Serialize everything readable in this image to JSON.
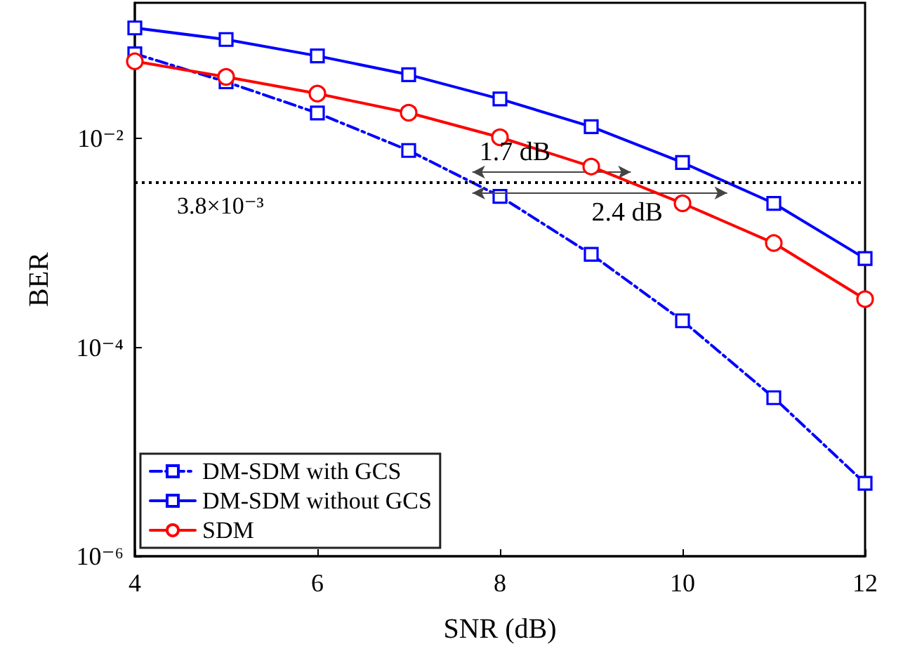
{
  "chart_data": {
    "type": "line",
    "xlabel": "SNR (dB)",
    "ylabel": "BER",
    "x": [
      4,
      5,
      6,
      7,
      8,
      9,
      10,
      11,
      12
    ],
    "series": [
      {
        "name": "DM-SDM with GCS",
        "color": "#0000ff",
        "marker": "square",
        "line_style": "dashdot",
        "values": [
          0.065,
          0.035,
          0.0176,
          0.0077,
          0.0028,
          0.00078,
          0.00018,
          3.3e-05,
          5e-06
        ]
      },
      {
        "name": "DM-SDM without GCS",
        "color": "#0000ff",
        "marker": "square",
        "line_style": "solid",
        "values": [
          0.115,
          0.089,
          0.062,
          0.041,
          0.024,
          0.013,
          0.0059,
          0.0024,
          0.00071
        ]
      },
      {
        "name": "SDM",
        "color": "#ff0000",
        "marker": "circle",
        "line_style": "solid",
        "values": [
          0.055,
          0.039,
          0.027,
          0.0177,
          0.0103,
          0.0054,
          0.0024,
          0.001,
          0.00029
        ]
      }
    ],
    "log": "y",
    "xlim": [
      4,
      12
    ],
    "xticks": [
      4,
      6,
      8,
      10,
      12
    ],
    "ylim": [
      1e-06,
      0.2
    ],
    "yticks": [
      {
        "value": 1e-06,
        "label": "10⁻⁶"
      },
      {
        "value": 0.0001,
        "label": "10⁻⁴"
      },
      {
        "value": 0.01,
        "label": "10⁻²"
      }
    ],
    "ref_lines": [
      {
        "axis": "y",
        "value": 0.0038,
        "label": "3.8×10⁻³",
        "color": "#000000",
        "line_style": "dotted"
      }
    ],
    "annotations": [
      "1.7 dB",
      "2.4 dB"
    ],
    "grid": false,
    "legend": "bottom left"
  }
}
